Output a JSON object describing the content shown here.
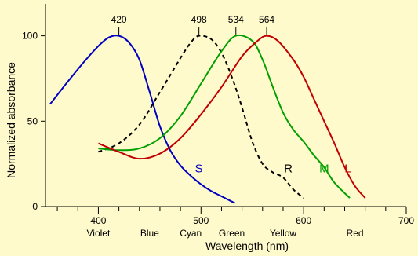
{
  "chart_data": {
    "type": "line",
    "xlabel": "Wavelength (nm)",
    "ylabel": "Normalized absorbance",
    "xlim": [
      350,
      700
    ],
    "ylim": [
      0,
      115
    ],
    "x_ticks": [
      400,
      500,
      600,
      700
    ],
    "x_tick_labels": [
      "400",
      "500",
      "600",
      "700"
    ],
    "y_ticks": [
      0,
      50,
      100
    ],
    "y_tick_labels": [
      "0",
      "50",
      "100"
    ],
    "color_labels": [
      {
        "x": 400,
        "label": "Violet"
      },
      {
        "x": 450,
        "label": "Blue"
      },
      {
        "x": 490,
        "label": "Cyan"
      },
      {
        "x": 530,
        "label": "Green"
      },
      {
        "x": 580,
        "label": "Yellow"
      },
      {
        "x": 650,
        "label": "Red"
      }
    ],
    "peaks": [
      {
        "x": 420,
        "label": "420"
      },
      {
        "x": 498,
        "label": "498"
      },
      {
        "x": 534,
        "label": "534"
      },
      {
        "x": 564,
        "label": "564"
      }
    ],
    "series": [
      {
        "name": "S",
        "color": "#0000c0",
        "dash": false,
        "label_x": 498,
        "label_y": 20,
        "x": [
          353,
          370,
          385,
          400,
          410,
          420,
          430,
          440,
          450,
          460,
          470,
          480,
          490,
          500,
          510,
          520,
          533
        ],
        "y": [
          60,
          73,
          84,
          94,
          99,
          100,
          96,
          86,
          67,
          47,
          33,
          24,
          18,
          13,
          9,
          6,
          2
        ]
      },
      {
        "name": "R",
        "color": "#000000",
        "dash": true,
        "label_x": 585,
        "label_y": 20,
        "x": [
          400,
          420,
          440,
          460,
          480,
          490,
          498,
          510,
          520,
          530,
          540,
          550,
          560,
          570,
          580,
          590,
          600
        ],
        "y": [
          32,
          37,
          48,
          67,
          87,
          96,
          100,
          98,
          90,
          76,
          58,
          38,
          25,
          20,
          17,
          10,
          5
        ]
      },
      {
        "name": "M",
        "color": "#00a000",
        "dash": false,
        "label_x": 620,
        "label_y": 20,
        "x": [
          400,
          420,
          440,
          460,
          480,
          500,
          520,
          534,
          550,
          560,
          570,
          580,
          590,
          600,
          610,
          620,
          630,
          645
        ],
        "y": [
          34,
          33,
          34,
          40,
          53,
          72,
          91,
          100,
          97,
          86,
          70,
          55,
          45,
          38,
          30,
          23,
          14,
          5
        ]
      },
      {
        "name": "L",
        "color": "#c00000",
        "dash": false,
        "label_x": 643,
        "label_y": 20,
        "x": [
          400,
          420,
          440,
          460,
          480,
          500,
          520,
          540,
          555,
          564,
          575,
          590,
          600,
          610,
          620,
          630,
          640,
          650,
          660
        ],
        "y": [
          37,
          32,
          28,
          31,
          40,
          54,
          70,
          88,
          97,
          100,
          97,
          86,
          76,
          63,
          50,
          37,
          23,
          12,
          5
        ]
      }
    ]
  }
}
